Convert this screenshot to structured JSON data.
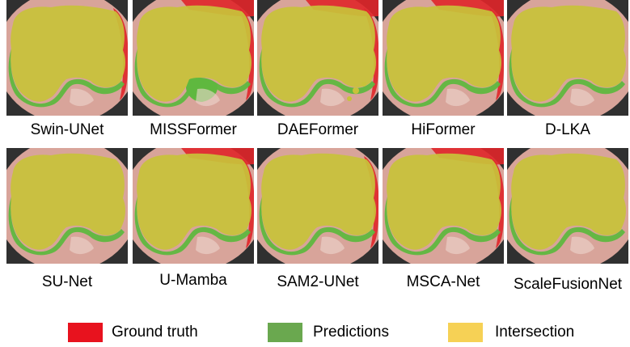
{
  "panels": [
    {
      "label": "Swin-UNet",
      "variant": "a"
    },
    {
      "label": "MISSFormer",
      "variant": "b"
    },
    {
      "label": "DAEFormer",
      "variant": "c"
    },
    {
      "label": "HiFormer",
      "variant": "d"
    },
    {
      "label": "D-LKA",
      "variant": "e"
    },
    {
      "label": "SU-Net",
      "variant": "e"
    },
    {
      "label": "U-Mamba",
      "variant": "f"
    },
    {
      "label": "SAM2-UNet",
      "variant": "a"
    },
    {
      "label": "MSCA-Net",
      "variant": "d"
    },
    {
      "label": "ScaleFusionNet",
      "variant": "e"
    }
  ],
  "legend": {
    "ground_truth": {
      "label": "Ground truth",
      "color": "#e8121e"
    },
    "predictions": {
      "label": "Predictions",
      "color": "#6aa84f"
    },
    "intersection": {
      "label": "Intersection",
      "color": "#f6d155"
    }
  },
  "colors": {
    "skin": "#d8a49a",
    "background": "#303030",
    "overlay_yellow": "#c8c23a",
    "overlay_green": "#5fb83f",
    "overlay_red": "#e0262a"
  }
}
